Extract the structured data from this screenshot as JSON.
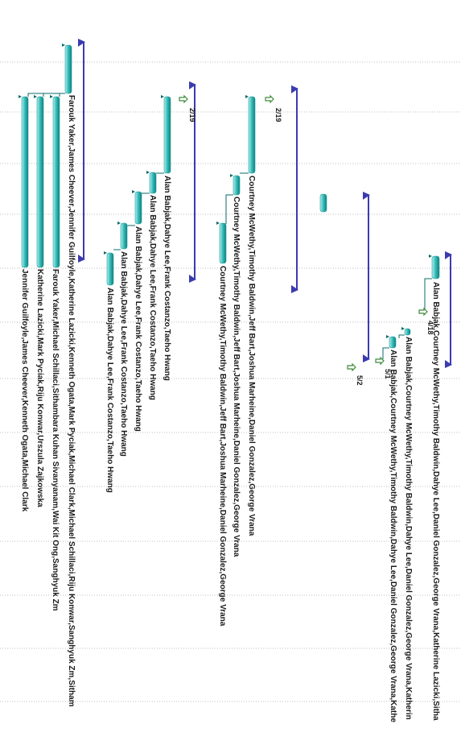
{
  "view": {
    "name": "Gantt chart (rotated)",
    "orientation": "rotated-90-clockwise"
  },
  "colors": {
    "background": "#ffffff",
    "gridline": "#bfbfbf",
    "task_fill_light": "#b9f0ee",
    "task_fill_mid": "#39c1bf",
    "task_fill_dark": "#0c7f7d",
    "summary_bar": "#3b3bb0",
    "summary_tip": "#3b3bb0",
    "link_line": "#0b6b69",
    "milestone_icon": "#3f8a3b",
    "label_text": "#1a1a1a"
  },
  "groups": [
    {
      "id": "g1",
      "tasks": [
        {
          "id": "t1",
          "resources": "Farouk Yaker,James Cheever,Jennifer Guilfoyle,Katherine Lazicki,Kenneth Ogata,Mark Pyciak,Michael Clark,Michael Schillaci,Riju Konwar,Sanghyuk Zm,Sitham"
        },
        {
          "id": "t2",
          "resources": "Farouk Yaker,Michael Schillaci,Sithambara Kuhan Sivanyanam,Wai Kit Ong,Sanghyuk Zm"
        },
        {
          "id": "t3",
          "resources": "Katherine Lazicki,Mark Pyciak,Riju Konwar,Urszula Zajkowska"
        },
        {
          "id": "t4",
          "resources": "Jennifer Guilfoyle,James Cheever,Kenneth Ogata,Michael Clark"
        }
      ]
    },
    {
      "id": "g2",
      "milestone": "2/19",
      "tasks": [
        {
          "id": "t5",
          "resources": "Alan Babjak,Dahye Lee,Frank Costanzo,Taeho Hwang"
        },
        {
          "id": "t6",
          "resources": "Alan Babjak,Dahye Lee,Frank Costanzo,Taeho Hwang"
        },
        {
          "id": "t7",
          "resources": "Alan Babjak,Dahye Lee,Frank Costanzo,Taeho Hwang"
        },
        {
          "id": "t8",
          "resources": "Alan Babjak,Dahye Lee,Frank Costanzo,Taeho Hwang"
        },
        {
          "id": "t9",
          "resources": "Alan Babjak,Dahye Lee,Frank Costanzo,Taeho Hwang"
        }
      ]
    },
    {
      "id": "g3",
      "milestone": "2/19",
      "tasks": [
        {
          "id": "t10",
          "resources": "Courtney McWethy,Timothy Baldwin,Jeff Bart,Joshua Marheine,Daniel Gonzalez,George Vrana"
        },
        {
          "id": "t11",
          "resources": "Courtney McWethy,Timothy Baldwin,Jeff Bart,Joshua Marheine,Daniel Gonzalez,George Vrana"
        },
        {
          "id": "t12",
          "resources": "Courtney McWethy,Timothy Baldwin,Jeff Bart,Joshua Marheine,Daniel Gonzalez,George Vrana"
        }
      ]
    },
    {
      "id": "g4",
      "milestones": [
        "4/18",
        "5/1",
        "5/2"
      ],
      "tasks": [
        {
          "id": "t13",
          "resources": "Alan Babjak,Courtney McWethy,Timothy Baldwin,Dahye Lee,Daniel Gonzalez,George Vrana,Katherine Lazicki,Sitha"
        },
        {
          "id": "t14",
          "resources": "Alan Babjak,Courtney McWethy,Timothy Baldwin,Dahye Lee,Daniel Gonzalez,George Vrana,Katherin"
        },
        {
          "id": "t15",
          "resources": "Alan Babjak,Courtney McWethy,Timothy Baldwin,Dahye Lee,Daniel Gonzalez,George Vrana,Kathe"
        }
      ]
    }
  ]
}
